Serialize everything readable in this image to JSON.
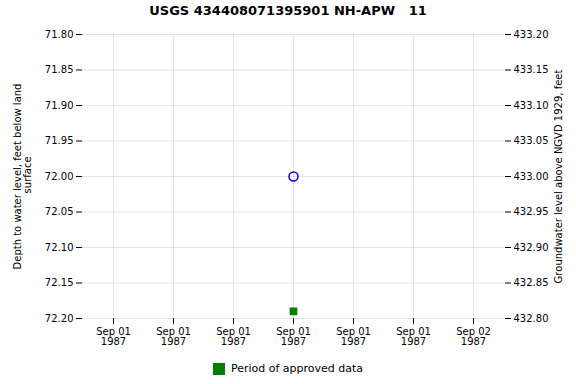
{
  "chart_data": {
    "type": "scatter",
    "title": "USGS 434408071395901 NH-APW   11",
    "ylabel": "Depth to water level, feet below land\n surface",
    "y2label": "Groundwater level above NGVD 1929, feet",
    "categories": [
      "Sep 01\n1987",
      "Sep 01\n1987",
      "Sep 01\n1987",
      "Sep 01\n1987",
      "Sep 01\n1987",
      "Sep 01\n1987",
      "Sep 02\n1987"
    ],
    "series": [
      {
        "color": "#0000cc",
        "marker": "circle",
        "values": [
          null,
          null,
          null,
          72.0,
          null,
          null,
          null
        ]
      },
      {
        "name": "Period of approved data",
        "color": "#008000",
        "marker": "square",
        "values": [
          null,
          null,
          null,
          72.19,
          null,
          null,
          null
        ]
      }
    ],
    "ylim": [
      72.2,
      71.8
    ],
    "yticks": [
      {
        "value": 71.8,
        "label": "71.80"
      },
      71.85,
      {
        "value": 71.9,
        "label": "71.90"
      },
      71.95,
      {
        "value": 72.0,
        "label": "72.00"
      },
      72.05,
      {
        "value": 72.1,
        "label": "72.10"
      },
      72.15,
      {
        "value": 72.2,
        "label": "72.20"
      }
    ],
    "y2lim": [
      432.8,
      433.2
    ],
    "y2ticks": [
      {
        "value": 432.8,
        "label": "432.80"
      },
      432.85,
      {
        "value": 432.9,
        "label": "432.90"
      },
      432.95,
      {
        "value": 433.0,
        "label": "433.00"
      },
      433.05,
      {
        "value": 433.1,
        "label": "433.10"
      },
      433.15,
      {
        "value": 433.2,
        "label": "433.20"
      }
    ],
    "grid": true,
    "legend": "bottom"
  }
}
